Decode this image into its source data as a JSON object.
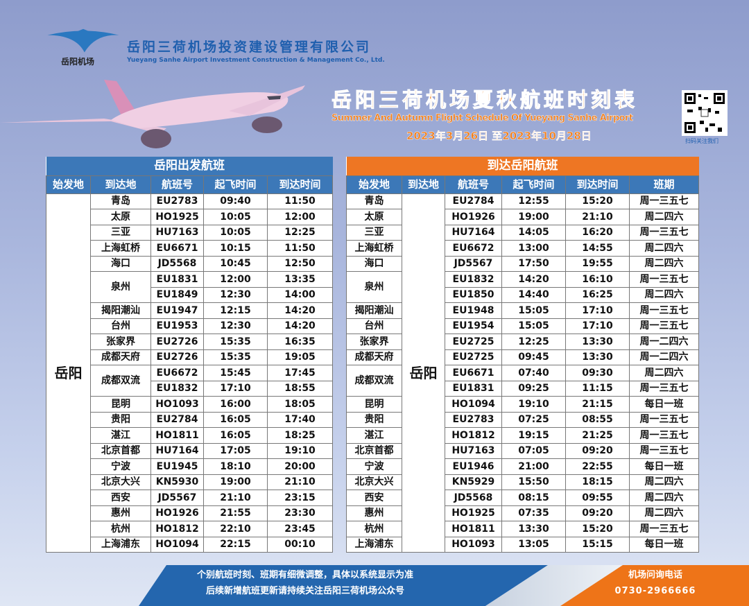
{
  "brand": {
    "logo_text": "岳阳机场",
    "company_cn": "岳阳三荷机场投资建设管理有限公司",
    "company_en": "Yueyang Sanhe Airport Investment Construction & Management Co., Ltd.",
    "brand_blue": "#1f5fae",
    "accent_orange": "#f07d1a"
  },
  "header": {
    "title_cn": "岳阳三荷机场夏秋航班时刻表",
    "title_en": "Summer And Autumn Flight Schedule Of Yueyang Sanhe Airport",
    "date_range": "2023年3月26日 至2023年10月28日",
    "qr_caption": "扫码关注我们"
  },
  "departures": {
    "title": "岳阳出发航班",
    "columns": [
      "始发地",
      "到达地",
      "航班号",
      "起飞时间",
      "到达时间"
    ],
    "origin": "岳阳",
    "groups": [
      {
        "city": "青岛",
        "flights": [
          {
            "no": "EU2783",
            "dep": "09:40",
            "arr": "11:50"
          }
        ]
      },
      {
        "city": "太原",
        "flights": [
          {
            "no": "HO1925",
            "dep": "10:05",
            "arr": "12:00"
          }
        ]
      },
      {
        "city": "三亚",
        "flights": [
          {
            "no": "HU7163",
            "dep": "10:05",
            "arr": "12:25"
          }
        ]
      },
      {
        "city": "上海虹桥",
        "flights": [
          {
            "no": "EU6671",
            "dep": "10:15",
            "arr": "11:50"
          }
        ]
      },
      {
        "city": "海口",
        "flights": [
          {
            "no": "JD5568",
            "dep": "10:45",
            "arr": "12:50"
          }
        ]
      },
      {
        "city": "泉州",
        "flights": [
          {
            "no": "EU1831",
            "dep": "12:00",
            "arr": "13:35"
          },
          {
            "no": "EU1849",
            "dep": "12:30",
            "arr": "14:00"
          }
        ]
      },
      {
        "city": "揭阳潮汕",
        "flights": [
          {
            "no": "EU1947",
            "dep": "12:15",
            "arr": "14:20"
          }
        ]
      },
      {
        "city": "台州",
        "flights": [
          {
            "no": "EU1953",
            "dep": "12:30",
            "arr": "14:20"
          }
        ]
      },
      {
        "city": "张家界",
        "flights": [
          {
            "no": "EU2726",
            "dep": "15:35",
            "arr": "16:35"
          }
        ]
      },
      {
        "city": "成都天府",
        "flights": [
          {
            "no": "EU2726",
            "dep": "15:35",
            "arr": "19:05"
          }
        ]
      },
      {
        "city": "成都双流",
        "flights": [
          {
            "no": "EU6672",
            "dep": "15:45",
            "arr": "17:45"
          },
          {
            "no": "EU1832",
            "dep": "17:10",
            "arr": "18:55"
          }
        ]
      },
      {
        "city": "昆明",
        "flights": [
          {
            "no": "HO1093",
            "dep": "16:00",
            "arr": "18:05"
          }
        ]
      },
      {
        "city": "贵阳",
        "flights": [
          {
            "no": "EU2784",
            "dep": "16:05",
            "arr": "17:40"
          }
        ]
      },
      {
        "city": "湛江",
        "flights": [
          {
            "no": "HO1811",
            "dep": "16:05",
            "arr": "18:25"
          }
        ]
      },
      {
        "city": "北京首都",
        "flights": [
          {
            "no": "HU7164",
            "dep": "17:05",
            "arr": "19:10"
          }
        ]
      },
      {
        "city": "宁波",
        "flights": [
          {
            "no": "EU1945",
            "dep": "18:10",
            "arr": "20:00"
          }
        ]
      },
      {
        "city": "北京大兴",
        "flights": [
          {
            "no": "KN5930",
            "dep": "19:00",
            "arr": "21:10"
          }
        ]
      },
      {
        "city": "西安",
        "flights": [
          {
            "no": "JD5567",
            "dep": "21:10",
            "arr": "23:15"
          }
        ]
      },
      {
        "city": "惠州",
        "flights": [
          {
            "no": "HO1926",
            "dep": "21:55",
            "arr": "23:30"
          }
        ]
      },
      {
        "city": "杭州",
        "flights": [
          {
            "no": "HO1812",
            "dep": "22:10",
            "arr": "23:45"
          }
        ]
      },
      {
        "city": "上海浦东",
        "flights": [
          {
            "no": "HO1094",
            "dep": "22:15",
            "arr": "00:10"
          }
        ]
      }
    ]
  },
  "arrivals": {
    "title": "到达岳阳航班",
    "columns": [
      "始发地",
      "到达地",
      "航班号",
      "起飞时间",
      "到达时间",
      "班期"
    ],
    "destination": "岳阳",
    "groups": [
      {
        "city": "青岛",
        "flights": [
          {
            "no": "EU2784",
            "dep": "12:55",
            "arr": "15:20",
            "days": "周一三五七"
          }
        ]
      },
      {
        "city": "太原",
        "flights": [
          {
            "no": "HO1926",
            "dep": "19:00",
            "arr": "21:10",
            "days": "周二四六"
          }
        ]
      },
      {
        "city": "三亚",
        "flights": [
          {
            "no": "HU7164",
            "dep": "14:05",
            "arr": "16:20",
            "days": "周一三五七"
          }
        ]
      },
      {
        "city": "上海虹桥",
        "flights": [
          {
            "no": "EU6672",
            "dep": "13:00",
            "arr": "14:55",
            "days": "周二四六"
          }
        ]
      },
      {
        "city": "海口",
        "flights": [
          {
            "no": "JD5567",
            "dep": "17:50",
            "arr": "19:55",
            "days": "周二四六"
          }
        ]
      },
      {
        "city": "泉州",
        "flights": [
          {
            "no": "EU1832",
            "dep": "14:20",
            "arr": "16:10",
            "days": "周一三五七"
          },
          {
            "no": "EU1850",
            "dep": "14:40",
            "arr": "16:25",
            "days": "周二四六"
          }
        ]
      },
      {
        "city": "揭阳潮汕",
        "flights": [
          {
            "no": "EU1948",
            "dep": "15:05",
            "arr": "17:10",
            "days": "周一三五七"
          }
        ]
      },
      {
        "city": "台州",
        "flights": [
          {
            "no": "EU1954",
            "dep": "15:05",
            "arr": "17:10",
            "days": "周一三五七"
          }
        ]
      },
      {
        "city": "张家界",
        "flights": [
          {
            "no": "EU2725",
            "dep": "12:25",
            "arr": "13:30",
            "days": "周一二四六"
          }
        ]
      },
      {
        "city": "成都天府",
        "flights": [
          {
            "no": "EU2725",
            "dep": "09:45",
            "arr": "13:30",
            "days": "周一二四六"
          }
        ]
      },
      {
        "city": "成都双流",
        "flights": [
          {
            "no": "EU6671",
            "dep": "07:40",
            "arr": "09:30",
            "days": "周二四六"
          },
          {
            "no": "EU1831",
            "dep": "09:25",
            "arr": "11:15",
            "days": "周一三五七"
          }
        ]
      },
      {
        "city": "昆明",
        "flights": [
          {
            "no": "HO1094",
            "dep": "19:10",
            "arr": "21:15",
            "days": "每日一班"
          }
        ]
      },
      {
        "city": "贵阳",
        "flights": [
          {
            "no": "EU2783",
            "dep": "07:25",
            "arr": "08:55",
            "days": "周一三五七"
          }
        ]
      },
      {
        "city": "湛江",
        "flights": [
          {
            "no": "HO1812",
            "dep": "19:15",
            "arr": "21:25",
            "days": "周一三五七"
          }
        ]
      },
      {
        "city": "北京首都",
        "flights": [
          {
            "no": "HU7163",
            "dep": "07:05",
            "arr": "09:20",
            "days": "周一三五七"
          }
        ]
      },
      {
        "city": "宁波",
        "flights": [
          {
            "no": "EU1946",
            "dep": "21:00",
            "arr": "22:55",
            "days": "每日一班"
          }
        ]
      },
      {
        "city": "北京大兴",
        "flights": [
          {
            "no": "KN5929",
            "dep": "15:50",
            "arr": "18:15",
            "days": "周二四六"
          }
        ]
      },
      {
        "city": "西安",
        "flights": [
          {
            "no": "JD5568",
            "dep": "08:15",
            "arr": "09:55",
            "days": "周二四六"
          }
        ]
      },
      {
        "city": "惠州",
        "flights": [
          {
            "no": "HO1925",
            "dep": "07:35",
            "arr": "09:20",
            "days": "周二四六"
          }
        ]
      },
      {
        "city": "杭州",
        "flights": [
          {
            "no": "HO1811",
            "dep": "13:30",
            "arr": "15:20",
            "days": "周一三五七"
          }
        ]
      },
      {
        "city": "上海浦东",
        "flights": [
          {
            "no": "HO1093",
            "dep": "13:05",
            "arr": "15:15",
            "days": "每日一班"
          }
        ]
      }
    ]
  },
  "footer": {
    "note_line1": "个别航班时刻、班期有细微调整，具体以系统显示为准",
    "note_line2": "后续新增航班更新请持续关注岳阳三荷机场公众号",
    "phone_label": "机场问询电话",
    "phone": "0730-2966666"
  }
}
